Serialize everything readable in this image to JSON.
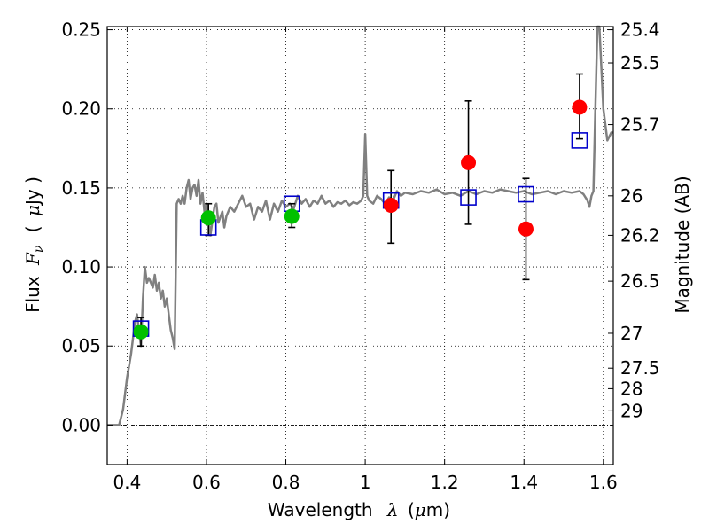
{
  "chart_data": {
    "type": "scatter",
    "xlabel": "Wavelength",
    "xlabel_symbol": "λ",
    "xlabel_unit_open": "(",
    "xlabel_unit_mu": "μ",
    "xlabel_unit_rest": "m)",
    "ylabel": "Flux",
    "ylabel_symbol": "F",
    "ylabel_sub": "ν",
    "ylabel_unit_open": "(",
    "ylabel_unit_mu": "μ",
    "ylabel_unit_rest": "Jy )",
    "y2label": "Magnitude (AB)",
    "xlim": [
      0.35,
      1.625
    ],
    "ylim": [
      -0.025,
      0.252
    ],
    "grid": true,
    "grid_style": "dotted",
    "x_ticks": [
      0.4,
      0.6,
      0.8,
      1.0,
      1.2,
      1.4,
      1.6
    ],
    "x_tick_labels": [
      "0.4",
      "0.6",
      "0.8",
      "1",
      "1.2",
      "1.4",
      "1.6"
    ],
    "y_ticks": [
      0.0,
      0.05,
      0.1,
      0.15,
      0.2,
      0.25
    ],
    "y_tick_labels": [
      "0.00",
      "0.05",
      "0.10",
      "0.15",
      "0.20",
      "0.25"
    ],
    "y2_ticks": [
      {
        "label": "25.4",
        "flux": 0.25
      },
      {
        "label": "25.5",
        "flux": 0.229
      },
      {
        "label": "25.7",
        "flux": 0.19
      },
      {
        "label": "26",
        "flux": 0.145
      },
      {
        "label": "26.2",
        "flux": 0.12
      },
      {
        "label": "26.5",
        "flux": 0.091
      },
      {
        "label": "27",
        "flux": 0.058
      },
      {
        "label": "27.5",
        "flux": 0.036
      },
      {
        "label": "28",
        "flux": 0.023
      },
      {
        "label": "29",
        "flux": 0.009
      }
    ],
    "series": [
      {
        "kind": "line",
        "color": "#808080",
        "x": [
          0.35,
          0.38,
          0.39,
          0.4,
          0.41,
          0.42,
          0.425,
          0.43,
          0.435,
          0.44,
          0.445,
          0.45,
          0.455,
          0.46,
          0.465,
          0.47,
          0.475,
          0.48,
          0.485,
          0.49,
          0.495,
          0.5,
          0.505,
          0.51,
          0.515,
          0.52,
          0.525,
          0.53,
          0.535,
          0.54,
          0.545,
          0.55,
          0.555,
          0.56,
          0.565,
          0.57,
          0.575,
          0.58,
          0.585,
          0.59,
          0.595,
          0.6,
          0.61,
          0.62,
          0.625,
          0.63,
          0.64,
          0.645,
          0.65,
          0.66,
          0.67,
          0.68,
          0.69,
          0.7,
          0.71,
          0.72,
          0.73,
          0.74,
          0.75,
          0.76,
          0.77,
          0.78,
          0.79,
          0.8,
          0.81,
          0.82,
          0.83,
          0.84,
          0.85,
          0.86,
          0.87,
          0.88,
          0.89,
          0.9,
          0.91,
          0.92,
          0.93,
          0.94,
          0.95,
          0.96,
          0.97,
          0.98,
          0.99,
          0.995,
          1.0,
          1.005,
          1.01,
          1.02,
          1.03,
          1.04,
          1.05,
          1.06,
          1.07,
          1.08,
          1.09,
          1.1,
          1.12,
          1.14,
          1.16,
          1.18,
          1.2,
          1.22,
          1.24,
          1.26,
          1.28,
          1.3,
          1.32,
          1.34,
          1.36,
          1.38,
          1.4,
          1.42,
          1.44,
          1.46,
          1.48,
          1.5,
          1.52,
          1.54,
          1.55,
          1.56,
          1.565,
          1.57,
          1.575,
          1.58,
          1.585,
          1.59,
          1.6,
          1.61,
          1.62,
          1.625
        ],
        "y": [
          0.0,
          0.0,
          0.01,
          0.03,
          0.045,
          0.065,
          0.07,
          0.06,
          0.05,
          0.08,
          0.1,
          0.09,
          0.093,
          0.09,
          0.087,
          0.095,
          0.085,
          0.09,
          0.08,
          0.085,
          0.075,
          0.08,
          0.07,
          0.06,
          0.055,
          0.048,
          0.14,
          0.143,
          0.14,
          0.145,
          0.14,
          0.15,
          0.155,
          0.143,
          0.15,
          0.152,
          0.145,
          0.155,
          0.14,
          0.147,
          0.135,
          0.14,
          0.12,
          0.138,
          0.14,
          0.128,
          0.135,
          0.125,
          0.132,
          0.138,
          0.135,
          0.14,
          0.145,
          0.138,
          0.14,
          0.13,
          0.138,
          0.135,
          0.142,
          0.13,
          0.14,
          0.135,
          0.142,
          0.138,
          0.14,
          0.137,
          0.145,
          0.14,
          0.143,
          0.138,
          0.142,
          0.14,
          0.145,
          0.14,
          0.142,
          0.138,
          0.141,
          0.14,
          0.142,
          0.139,
          0.141,
          0.14,
          0.142,
          0.145,
          0.184,
          0.145,
          0.142,
          0.14,
          0.145,
          0.143,
          0.14,
          0.144,
          0.142,
          0.148,
          0.145,
          0.147,
          0.146,
          0.148,
          0.147,
          0.149,
          0.146,
          0.147,
          0.145,
          0.148,
          0.146,
          0.148,
          0.147,
          0.149,
          0.148,
          0.147,
          0.148,
          0.146,
          0.147,
          0.148,
          0.146,
          0.148,
          0.147,
          0.148,
          0.146,
          0.142,
          0.138,
          0.145,
          0.148,
          0.2,
          0.26,
          0.26,
          0.2,
          0.18,
          0.185,
          0.185
        ]
      },
      {
        "kind": "points",
        "marker": "square",
        "color": "#0000cc",
        "x": [
          0.435,
          0.605,
          0.815,
          1.065,
          1.26,
          1.405,
          1.54
        ],
        "y": [
          0.061,
          0.125,
          0.14,
          0.142,
          0.144,
          0.146,
          0.18
        ]
      },
      {
        "kind": "points",
        "marker": "circle",
        "color": "#00c000",
        "x": [
          0.435,
          0.605,
          0.815
        ],
        "y": [
          0.059,
          0.131,
          0.132
        ],
        "yerr_low": [
          0.05,
          0.12,
          0.125
        ],
        "yerr_high": [
          0.068,
          0.14,
          0.14
        ]
      },
      {
        "kind": "points",
        "marker": "circle",
        "color": "#ff0000",
        "x": [
          1.065,
          1.26,
          1.405,
          1.54
        ],
        "y": [
          0.139,
          0.166,
          0.124,
          0.201
        ],
        "yerr_low": [
          0.115,
          0.127,
          0.092,
          0.181
        ],
        "yerr_high": [
          0.161,
          0.205,
          0.156,
          0.222
        ]
      }
    ]
  }
}
